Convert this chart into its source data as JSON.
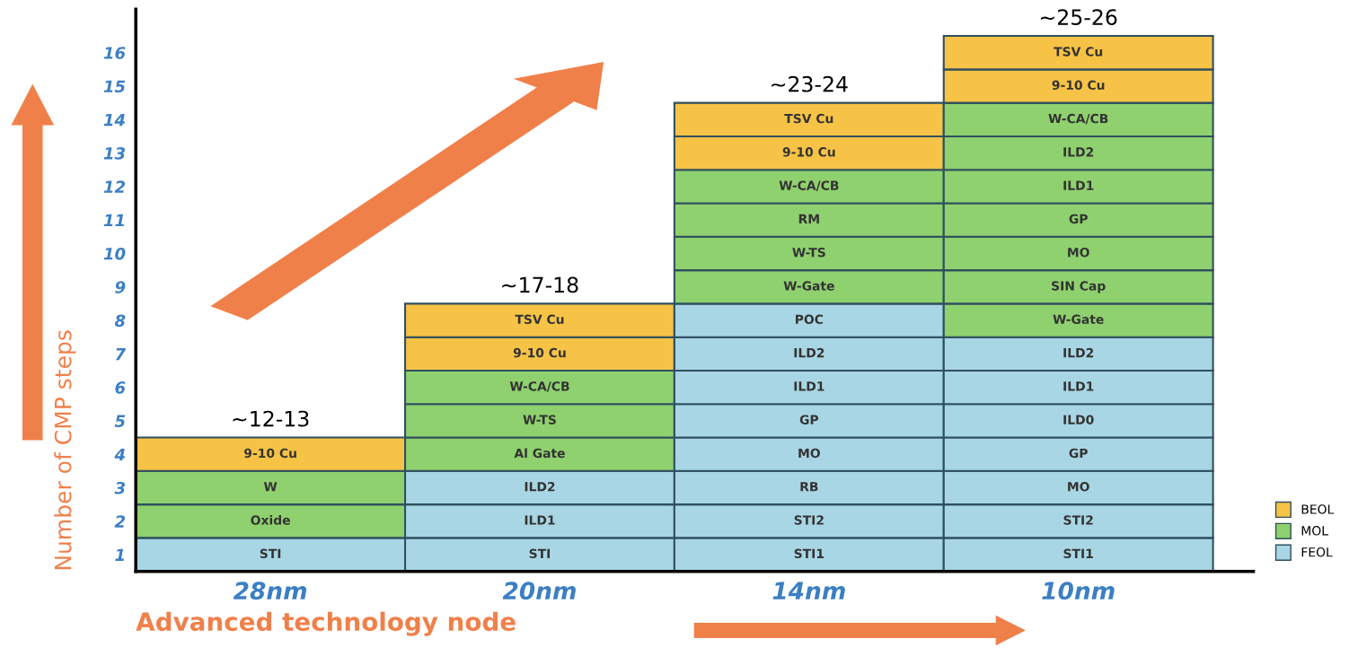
{
  "chart_data": {
    "type": "bar",
    "stacked": true,
    "categories": [
      "28nm",
      "20nm",
      "14nm",
      "10nm"
    ],
    "xlabel": "Advanced technology node",
    "ylabel": "Number of CMP steps",
    "ylim": [
      0,
      16.8
    ],
    "yticks": [
      {
        "value": 0.5,
        "label": "1"
      },
      {
        "value": 1.5,
        "label": "2"
      },
      {
        "value": 2.5,
        "label": "3"
      },
      {
        "value": 3.5,
        "label": "4"
      },
      {
        "value": 4.5,
        "label": "5"
      },
      {
        "value": 5.5,
        "label": "6"
      },
      {
        "value": 6.5,
        "label": "7"
      },
      {
        "value": 7.5,
        "label": "8"
      },
      {
        "value": 8.5,
        "label": "9"
      },
      {
        "value": 9.5,
        "label": "10"
      },
      {
        "value": 10.5,
        "label": "11"
      },
      {
        "value": 11.5,
        "label": "12"
      },
      {
        "value": 12.5,
        "label": "13"
      },
      {
        "value": 13.5,
        "label": "14"
      },
      {
        "value": 14.5,
        "label": "15"
      },
      {
        "value": 15.5,
        "label": "16"
      }
    ],
    "totals": [
      "~12-13",
      "~17-18",
      "~23-24",
      "~25-26"
    ],
    "grid": false,
    "legend": "bottom right",
    "series": [
      {
        "values": [
          1,
          1,
          1,
          1
        ],
        "colors": [
          "#a9d6e5",
          "#a9d6e5",
          "#a9d6e5",
          "#a9d6e5"
        ],
        "value_labels": [
          "STI",
          "STI",
          "STI1",
          "STI1"
        ]
      },
      {
        "values": [
          1,
          1,
          1,
          1
        ],
        "colors": [
          "#8fd16e",
          "#a9d6e5",
          "#a9d6e5",
          "#a9d6e5"
        ],
        "value_labels": [
          "Oxide",
          "ILD1",
          "STI2",
          "STI2"
        ]
      },
      {
        "values": [
          1,
          1,
          1,
          1
        ],
        "colors": [
          "#8fd16e",
          "#a9d6e5",
          "#a9d6e5",
          "#a9d6e5"
        ],
        "value_labels": [
          "W",
          "ILD2",
          "RB",
          "MO"
        ]
      },
      {
        "values": [
          1,
          1,
          1,
          1
        ],
        "colors": [
          "#f6c346",
          "#8fd16e",
          "#a9d6e5",
          "#a9d6e5"
        ],
        "value_labels": [
          "9-10 Cu",
          "Al Gate",
          "MO",
          "GP"
        ]
      },
      {
        "values": [
          null,
          1,
          1,
          1
        ],
        "colors": [
          null,
          "#8fd16e",
          "#a9d6e5",
          "#a9d6e5"
        ],
        "value_labels": [
          null,
          "W-TS",
          "GP",
          "ILD0"
        ]
      },
      {
        "values": [
          null,
          1,
          1,
          1
        ],
        "colors": [
          null,
          "#8fd16e",
          "#a9d6e5",
          "#a9d6e5"
        ],
        "value_labels": [
          null,
          "W-CA/CB",
          "ILD1",
          "ILD1"
        ]
      },
      {
        "values": [
          null,
          1,
          1,
          1
        ],
        "colors": [
          null,
          "#f6c346",
          "#a9d6e5",
          "#a9d6e5"
        ],
        "value_labels": [
          null,
          "9-10 Cu",
          "ILD2",
          "ILD2"
        ]
      },
      {
        "values": [
          null,
          1,
          1,
          1
        ],
        "colors": [
          null,
          "#f6c346",
          "#a9d6e5",
          "#8fd16e"
        ],
        "value_labels": [
          null,
          "TSV Cu",
          "POC",
          "W-Gate"
        ]
      },
      {
        "values": [
          null,
          null,
          1,
          1
        ],
        "colors": [
          null,
          null,
          "#8fd16e",
          "#8fd16e"
        ],
        "value_labels": [
          null,
          null,
          "W-Gate",
          "SIN Cap"
        ]
      },
      {
        "values": [
          null,
          null,
          1,
          1
        ],
        "colors": [
          null,
          null,
          "#8fd16e",
          "#8fd16e"
        ],
        "value_labels": [
          null,
          null,
          "W-TS",
          "MO"
        ]
      },
      {
        "values": [
          null,
          null,
          1,
          1
        ],
        "colors": [
          null,
          null,
          "#8fd16e",
          "#8fd16e"
        ],
        "value_labels": [
          null,
          null,
          "RM",
          "GP"
        ]
      },
      {
        "values": [
          null,
          null,
          1,
          1
        ],
        "colors": [
          null,
          null,
          "#8fd16e",
          "#8fd16e"
        ],
        "value_labels": [
          null,
          null,
          "W-CA/CB",
          "ILD1"
        ]
      },
      {
        "values": [
          null,
          null,
          1,
          1
        ],
        "colors": [
          null,
          null,
          "#f6c346",
          "#8fd16e"
        ],
        "value_labels": [
          null,
          null,
          "9-10 Cu",
          "ILD2"
        ]
      },
      {
        "values": [
          null,
          null,
          1,
          1
        ],
        "colors": [
          null,
          null,
          "#f6c346",
          "#8fd16e"
        ],
        "value_labels": [
          null,
          null,
          "TSV Cu",
          "W-CA/CB"
        ]
      },
      {
        "values": [
          null,
          null,
          null,
          1
        ],
        "colors": [
          null,
          null,
          null,
          "#f6c346"
        ],
        "value_labels": [
          null,
          null,
          null,
          "9-10 Cu"
        ]
      },
      {
        "values": [
          null,
          null,
          null,
          1
        ],
        "colors": [
          null,
          null,
          null,
          "#f6c346"
        ],
        "value_labels": [
          null,
          null,
          null,
          "TSV Cu"
        ]
      },
      {
        "name": "BEOL",
        "color": "#f6c346",
        "values": [
          null,
          null,
          null,
          null
        ]
      },
      {
        "name": "MOL",
        "color": "#8fd16e",
        "values": [
          null,
          null,
          null,
          null
        ]
      },
      {
        "name": "FEOL",
        "color": "#a9d6e5",
        "values": [
          null,
          null,
          null,
          null
        ]
      }
    ]
  }
}
